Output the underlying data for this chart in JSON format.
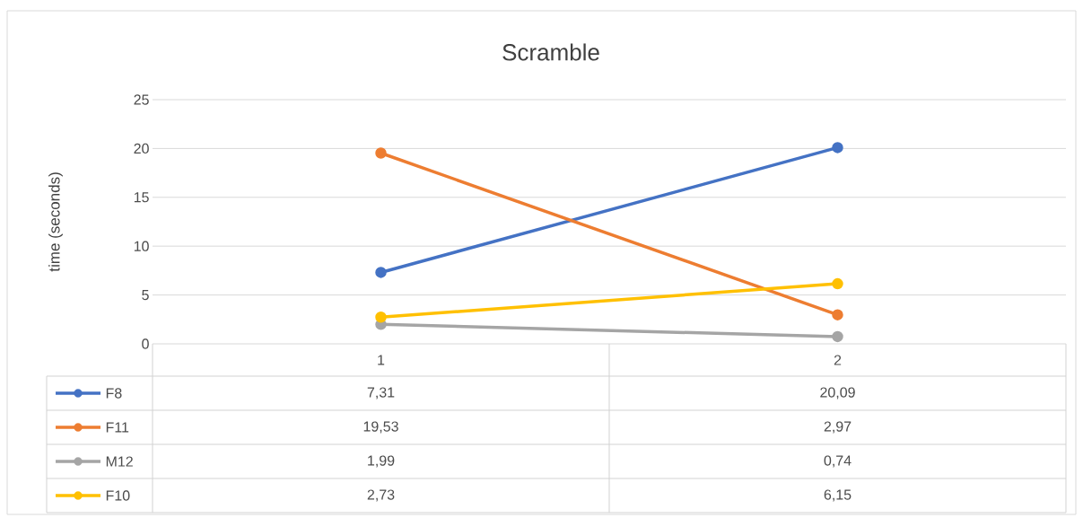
{
  "chart_data": {
    "type": "line",
    "title": "Scramble",
    "ylabel": "time (seconds)",
    "categories": [
      "1",
      "2"
    ],
    "series": [
      {
        "name": "F8",
        "color": "#4472c4",
        "values": [
          7.31,
          20.09
        ],
        "value_labels": [
          "7,31",
          "20,09"
        ]
      },
      {
        "name": "F11",
        "color": "#ed7d31",
        "values": [
          19.53,
          2.97
        ],
        "value_labels": [
          "19,53",
          "2,97"
        ]
      },
      {
        "name": "M12",
        "color": "#a5a5a5",
        "values": [
          1.99,
          0.74
        ],
        "value_labels": [
          "1,99",
          "0,74"
        ]
      },
      {
        "name": "F10",
        "color": "#ffc000",
        "values": [
          2.73,
          6.15
        ],
        "value_labels": [
          "2,73",
          "6,15"
        ]
      }
    ],
    "ylim": [
      0,
      25
    ],
    "yticks": [
      0,
      5,
      10,
      15,
      20,
      25
    ],
    "grid": "y",
    "legend": "bottom",
    "marker": "circle",
    "line_style": "solid"
  }
}
